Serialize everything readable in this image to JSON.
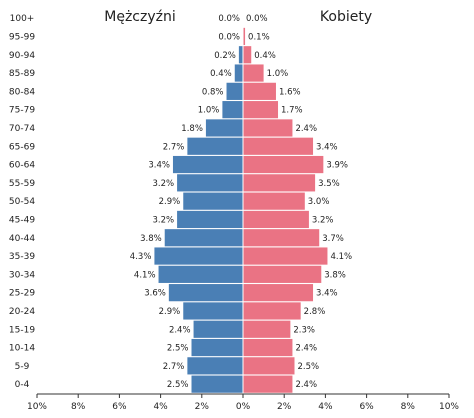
{
  "chart_data": {
    "type": "bar",
    "orientation": "horizontal-diverging",
    "categories": [
      "100+",
      "95-99",
      "90-94",
      "85-89",
      "80-84",
      "75-79",
      "70-74",
      "65-69",
      "60-64",
      "55-59",
      "50-54",
      "45-49",
      "40-44",
      "35-39",
      "30-34",
      "25-29",
      "20-24",
      "15-19",
      "10-14",
      "5-9",
      "0-4"
    ],
    "series": [
      {
        "name": "Mężczyźni",
        "color": "#4a7fb5",
        "values": [
          0.0,
          0.0,
          0.2,
          0.4,
          0.8,
          1.0,
          1.8,
          2.7,
          3.4,
          3.2,
          2.9,
          3.2,
          3.8,
          4.3,
          4.1,
          3.6,
          2.9,
          2.4,
          2.5,
          2.7,
          2.5
        ],
        "labels": [
          "0.0%",
          "0.0%",
          "0.2%",
          "0.4%",
          "0.8%",
          "1.0%",
          "1.8%",
          "2.7%",
          "3.4%",
          "3.2%",
          "2.9%",
          "3.2%",
          "3.8%",
          "4.3%",
          "4.1%",
          "3.6%",
          "2.9%",
          "2.4%",
          "2.5%",
          "2.7%",
          "2.5%"
        ]
      },
      {
        "name": "Kobiety",
        "color": "#ea7384",
        "values": [
          0.0,
          0.1,
          0.4,
          1.0,
          1.6,
          1.7,
          2.4,
          3.4,
          3.9,
          3.5,
          3.0,
          3.2,
          3.7,
          4.1,
          3.8,
          3.4,
          2.8,
          2.3,
          2.4,
          2.5,
          2.4
        ],
        "labels": [
          "0.0%",
          "0.1%",
          "0.4%",
          "1.0%",
          "1.6%",
          "1.7%",
          "2.4%",
          "3.4%",
          "3.9%",
          "3.5%",
          "3.0%",
          "3.2%",
          "3.7%",
          "4.1%",
          "3.8%",
          "3.4%",
          "2.8%",
          "2.3%",
          "2.4%",
          "2.5%",
          "2.4%"
        ]
      }
    ],
    "xlim": [
      -10,
      10
    ],
    "x_ticks": [
      "10%",
      "8%",
      "6%",
      "4%",
      "2%",
      "0%",
      "2%",
      "4%",
      "6%",
      "8%",
      "10%"
    ],
    "legend": "top",
    "grid": false
  }
}
